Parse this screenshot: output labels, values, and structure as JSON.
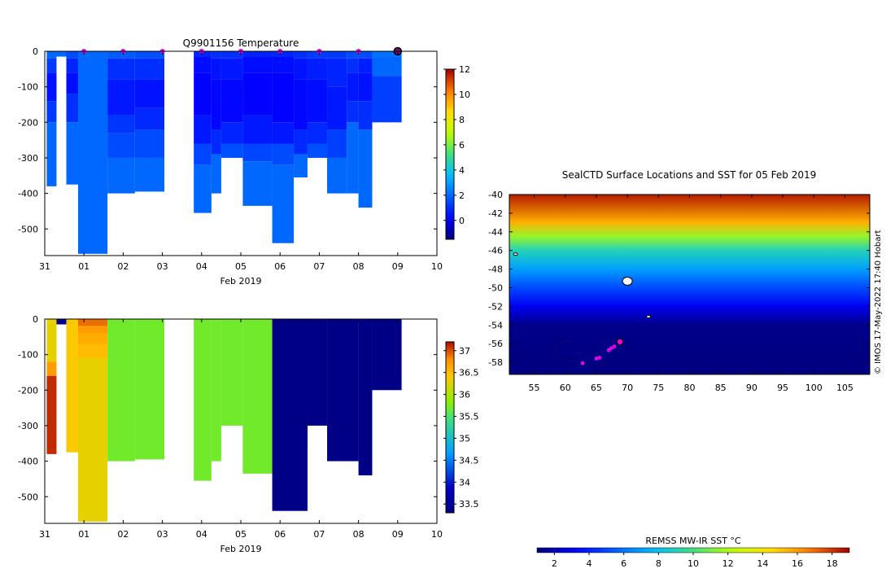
{
  "figure": {
    "credit": "© IMOS 17-May-2022 17:40 Hobart"
  },
  "chart_data": [
    {
      "type": "heatmap",
      "title": "Q9901156  Temperature",
      "xlabel": "Feb 2019",
      "ylabel": "",
      "x_tick_labels": [
        "31",
        "01",
        "02",
        "03",
        "04",
        "05",
        "06",
        "07",
        "08",
        "09",
        "10"
      ],
      "x_range_days": [
        0,
        10
      ],
      "ylim": [
        -575,
        0
      ],
      "y_ticks": [
        0,
        -100,
        -200,
        -300,
        -400,
        -500
      ],
      "colorbar": {
        "min": -1.5,
        "max": 12,
        "ticks": [
          0,
          2,
          4,
          6,
          8,
          10,
          12
        ]
      },
      "profile_markers_days": [
        1,
        2,
        3,
        4,
        5,
        6,
        7,
        8
      ],
      "current_marker_day": 9,
      "profiles": [
        {
          "x0": 0.05,
          "x1": 0.3,
          "maxdepth": 380,
          "segments": [
            [
              0,
              20,
              2
            ],
            [
              20,
              60,
              1.2
            ],
            [
              60,
              140,
              0.5
            ],
            [
              140,
              200,
              1.2
            ],
            [
              200,
              380,
              2
            ]
          ]
        },
        {
          "x0": 0.3,
          "x1": 0.55,
          "maxdepth": 15,
          "segments": [
            [
              0,
              15,
              2
            ]
          ]
        },
        {
          "x0": 0.55,
          "x1": 0.85,
          "maxdepth": 375,
          "segments": [
            [
              0,
              20,
              1.5
            ],
            [
              20,
              60,
              0.8
            ],
            [
              60,
              120,
              0.4
            ],
            [
              120,
              200,
              1.0
            ],
            [
              200,
              375,
              2
            ]
          ]
        },
        {
          "x0": 0.85,
          "x1": 1.6,
          "maxdepth": 570,
          "segments": [
            [
              0,
              570,
              2
            ]
          ]
        },
        {
          "x0": 1.6,
          "x1": 2.3,
          "maxdepth": 400,
          "segments": [
            [
              0,
              20,
              1.8
            ],
            [
              20,
              80,
              1.0
            ],
            [
              80,
              180,
              0.6
            ],
            [
              180,
              230,
              1.1
            ],
            [
              230,
              300,
              1.5
            ],
            [
              300,
              400,
              2
            ]
          ]
        },
        {
          "x0": 2.3,
          "x1": 3.05,
          "maxdepth": 395,
          "segments": [
            [
              0,
              20,
              1.6
            ],
            [
              20,
              80,
              1.0
            ],
            [
              80,
              160,
              0.5
            ],
            [
              160,
              220,
              0.9
            ],
            [
              220,
              300,
              1.5
            ],
            [
              300,
              395,
              2
            ]
          ]
        },
        {
          "x0": 3.8,
          "x1": 4.25,
          "maxdepth": 455,
          "segments": [
            [
              0,
              15,
              0.8
            ],
            [
              15,
              60,
              0.4
            ],
            [
              60,
              180,
              0.2
            ],
            [
              180,
              260,
              0.6
            ],
            [
              260,
              320,
              1.4
            ],
            [
              320,
              455,
              2
            ]
          ]
        },
        {
          "x0": 4.25,
          "x1": 4.5,
          "maxdepth": 400,
          "segments": [
            [
              0,
              20,
              1.0
            ],
            [
              20,
              80,
              0.5
            ],
            [
              80,
              220,
              0.3
            ],
            [
              220,
              290,
              0.9
            ],
            [
              290,
              400,
              2
            ]
          ]
        },
        {
          "x0": 4.5,
          "x1": 5.05,
          "maxdepth": 300,
          "segments": [
            [
              0,
              20,
              1.0
            ],
            [
              20,
              80,
              0.6
            ],
            [
              80,
              200,
              0.3
            ],
            [
              200,
              260,
              0.8
            ],
            [
              260,
              300,
              1.6
            ]
          ]
        },
        {
          "x0": 5.05,
          "x1": 5.8,
          "maxdepth": 435,
          "segments": [
            [
              0,
              15,
              0.8
            ],
            [
              15,
              60,
              0.4
            ],
            [
              60,
              180,
              0.2
            ],
            [
              180,
              260,
              0.6
            ],
            [
              260,
              310,
              1.4
            ],
            [
              310,
              435,
              2
            ]
          ]
        },
        {
          "x0": 5.8,
          "x1": 6.35,
          "maxdepth": 540,
          "segments": [
            [
              0,
              15,
              0.8
            ],
            [
              15,
              60,
              0.4
            ],
            [
              60,
              200,
              0.2
            ],
            [
              200,
              260,
              0.6
            ],
            [
              260,
              320,
              1.5
            ],
            [
              320,
              540,
              2
            ]
          ]
        },
        {
          "x0": 6.35,
          "x1": 6.7,
          "maxdepth": 355,
          "segments": [
            [
              0,
              20,
              1.0
            ],
            [
              20,
              80,
              0.5
            ],
            [
              80,
              220,
              0.3
            ],
            [
              220,
              290,
              0.9
            ],
            [
              290,
              355,
              2
            ]
          ]
        },
        {
          "x0": 6.7,
          "x1": 7.2,
          "maxdepth": 300,
          "segments": [
            [
              0,
              20,
              1.2
            ],
            [
              20,
              80,
              0.7
            ],
            [
              80,
              200,
              0.4
            ],
            [
              200,
              260,
              0.9
            ],
            [
              260,
              300,
              1.6
            ]
          ]
        },
        {
          "x0": 7.2,
          "x1": 7.7,
          "maxdepth": 400,
          "segments": [
            [
              0,
              20,
              1.2
            ],
            [
              20,
              100,
              0.8
            ],
            [
              100,
              220,
              0.6
            ],
            [
              220,
              300,
              1.3
            ],
            [
              300,
              400,
              2
            ]
          ]
        },
        {
          "x0": 7.7,
          "x1": 8.0,
          "maxdepth": 400,
          "segments": [
            [
              0,
              20,
              1.5
            ],
            [
              20,
              60,
              1.0
            ],
            [
              60,
              140,
              0.6
            ],
            [
              140,
              200,
              1.0
            ],
            [
              200,
              400,
              2
            ]
          ]
        },
        {
          "x0": 8.0,
          "x1": 8.35,
          "maxdepth": 440,
          "segments": [
            [
              0,
              20,
              1.5
            ],
            [
              20,
              60,
              0.7
            ],
            [
              60,
              140,
              0.5
            ],
            [
              140,
              220,
              1.0
            ],
            [
              220,
              440,
              2
            ]
          ]
        },
        {
          "x0": 8.35,
          "x1": 9.1,
          "maxdepth": 200,
          "segments": [
            [
              0,
              15,
              2.2
            ],
            [
              15,
              70,
              2.0
            ],
            [
              70,
              200,
              1.3
            ]
          ]
        }
      ]
    },
    {
      "type": "heatmap",
      "title": "",
      "xlabel": "Feb 2019",
      "ylabel": "",
      "x_tick_labels": [
        "31",
        "01",
        "02",
        "03",
        "04",
        "05",
        "06",
        "07",
        "08",
        "09",
        "10"
      ],
      "x_range_days": [
        0,
        10
      ],
      "ylim": [
        -575,
        0
      ],
      "y_ticks": [
        0,
        -100,
        -200,
        -300,
        -400,
        -500
      ],
      "colorbar": {
        "min": 33.3,
        "max": 37.2,
        "ticks": [
          33.5,
          34,
          34.5,
          35,
          35.5,
          36,
          36.5,
          37
        ]
      },
      "profiles": [
        {
          "x0": 0.05,
          "x1": 0.3,
          "maxdepth": 380,
          "segments": [
            [
              0,
              120,
              36.3
            ],
            [
              120,
              160,
              36.7
            ],
            [
              160,
              380,
              37.1
            ]
          ]
        },
        {
          "x0": 0.3,
          "x1": 0.55,
          "maxdepth": 15,
          "segments": [
            [
              0,
              15,
              33.4
            ]
          ]
        },
        {
          "x0": 0.55,
          "x1": 0.85,
          "maxdepth": 375,
          "segments": [
            [
              0,
              375,
              36.4
            ]
          ]
        },
        {
          "x0": 0.85,
          "x1": 1.6,
          "maxdepth": 570,
          "segments": [
            [
              0,
              20,
              36.9
            ],
            [
              20,
              40,
              36.7
            ],
            [
              40,
              70,
              36.6
            ],
            [
              70,
              110,
              36.5
            ],
            [
              110,
              570,
              36.3
            ]
          ]
        },
        {
          "x0": 1.6,
          "x1": 2.3,
          "maxdepth": 400,
          "segments": [
            [
              0,
              400,
              35.7
            ]
          ]
        },
        {
          "x0": 2.3,
          "x1": 3.05,
          "maxdepth": 395,
          "segments": [
            [
              0,
              395,
              35.7
            ]
          ]
        },
        {
          "x0": 3.8,
          "x1": 4.25,
          "maxdepth": 455,
          "segments": [
            [
              0,
              455,
              35.7
            ]
          ]
        },
        {
          "x0": 4.25,
          "x1": 4.5,
          "maxdepth": 400,
          "segments": [
            [
              0,
              400,
              35.7
            ]
          ]
        },
        {
          "x0": 4.5,
          "x1": 5.05,
          "maxdepth": 300,
          "segments": [
            [
              0,
              300,
              35.7
            ]
          ]
        },
        {
          "x0": 5.05,
          "x1": 5.8,
          "maxdepth": 435,
          "segments": [
            [
              0,
              435,
              35.7
            ]
          ]
        },
        {
          "x0": 5.8,
          "x1": 6.7,
          "maxdepth": 540,
          "segments": [
            [
              0,
              540,
              33.35
            ]
          ]
        },
        {
          "x0": 6.35,
          "x1": 6.7,
          "maxdepth": 355,
          "segments": [
            [
              0,
              355,
              33.35
            ]
          ]
        },
        {
          "x0": 6.7,
          "x1": 7.2,
          "maxdepth": 300,
          "segments": [
            [
              0,
              300,
              33.35
            ]
          ]
        },
        {
          "x0": 7.2,
          "x1": 8.0,
          "maxdepth": 400,
          "segments": [
            [
              0,
              400,
              33.35
            ]
          ]
        },
        {
          "x0": 8.0,
          "x1": 8.35,
          "maxdepth": 440,
          "segments": [
            [
              0,
              440,
              33.35
            ]
          ]
        },
        {
          "x0": 8.35,
          "x1": 9.1,
          "maxdepth": 200,
          "segments": [
            [
              0,
              200,
              33.35
            ]
          ]
        }
      ]
    },
    {
      "type": "map",
      "title": "SealCTD Surface Locations and SST for 05 Feb 2019",
      "x_ticks": [
        55,
        60,
        65,
        70,
        75,
        80,
        85,
        90,
        95,
        100,
        105
      ],
      "xlim": [
        51,
        109
      ],
      "y_ticks": [
        -40,
        -42,
        -44,
        -46,
        -48,
        -50,
        -52,
        -54,
        -56,
        -58
      ],
      "ylim": [
        -59.3,
        -40
      ],
      "sst_bands": [
        {
          "lat": -40,
          "value": 18.5
        },
        {
          "lat": -43,
          "value": 15.5
        },
        {
          "lat": -44.5,
          "value": 11.5
        },
        {
          "lat": -46,
          "value": 9
        },
        {
          "lat": -48,
          "value": 7
        },
        {
          "lat": -50,
          "value": 5
        },
        {
          "lat": -52,
          "value": 3
        },
        {
          "lat": -54,
          "value": 1.2
        },
        {
          "lat": -59.3,
          "value": 1.0
        }
      ],
      "track": [
        {
          "lon": 62.8,
          "lat": -58.1
        },
        {
          "lon": 65.0,
          "lat": -57.6
        },
        {
          "lon": 65.5,
          "lat": -57.5
        },
        {
          "lon": 67.0,
          "lat": -56.7
        },
        {
          "lon": 67.4,
          "lat": -56.5
        },
        {
          "lon": 67.9,
          "lat": -56.3
        }
      ],
      "current_location": {
        "lon": 68.8,
        "lat": -55.8
      },
      "colorbar": {
        "label": "REMSS MW-IR SST °C",
        "min": 1,
        "max": 19,
        "ticks": [
          2,
          4,
          6,
          8,
          10,
          12,
          14,
          16,
          18
        ]
      }
    }
  ]
}
